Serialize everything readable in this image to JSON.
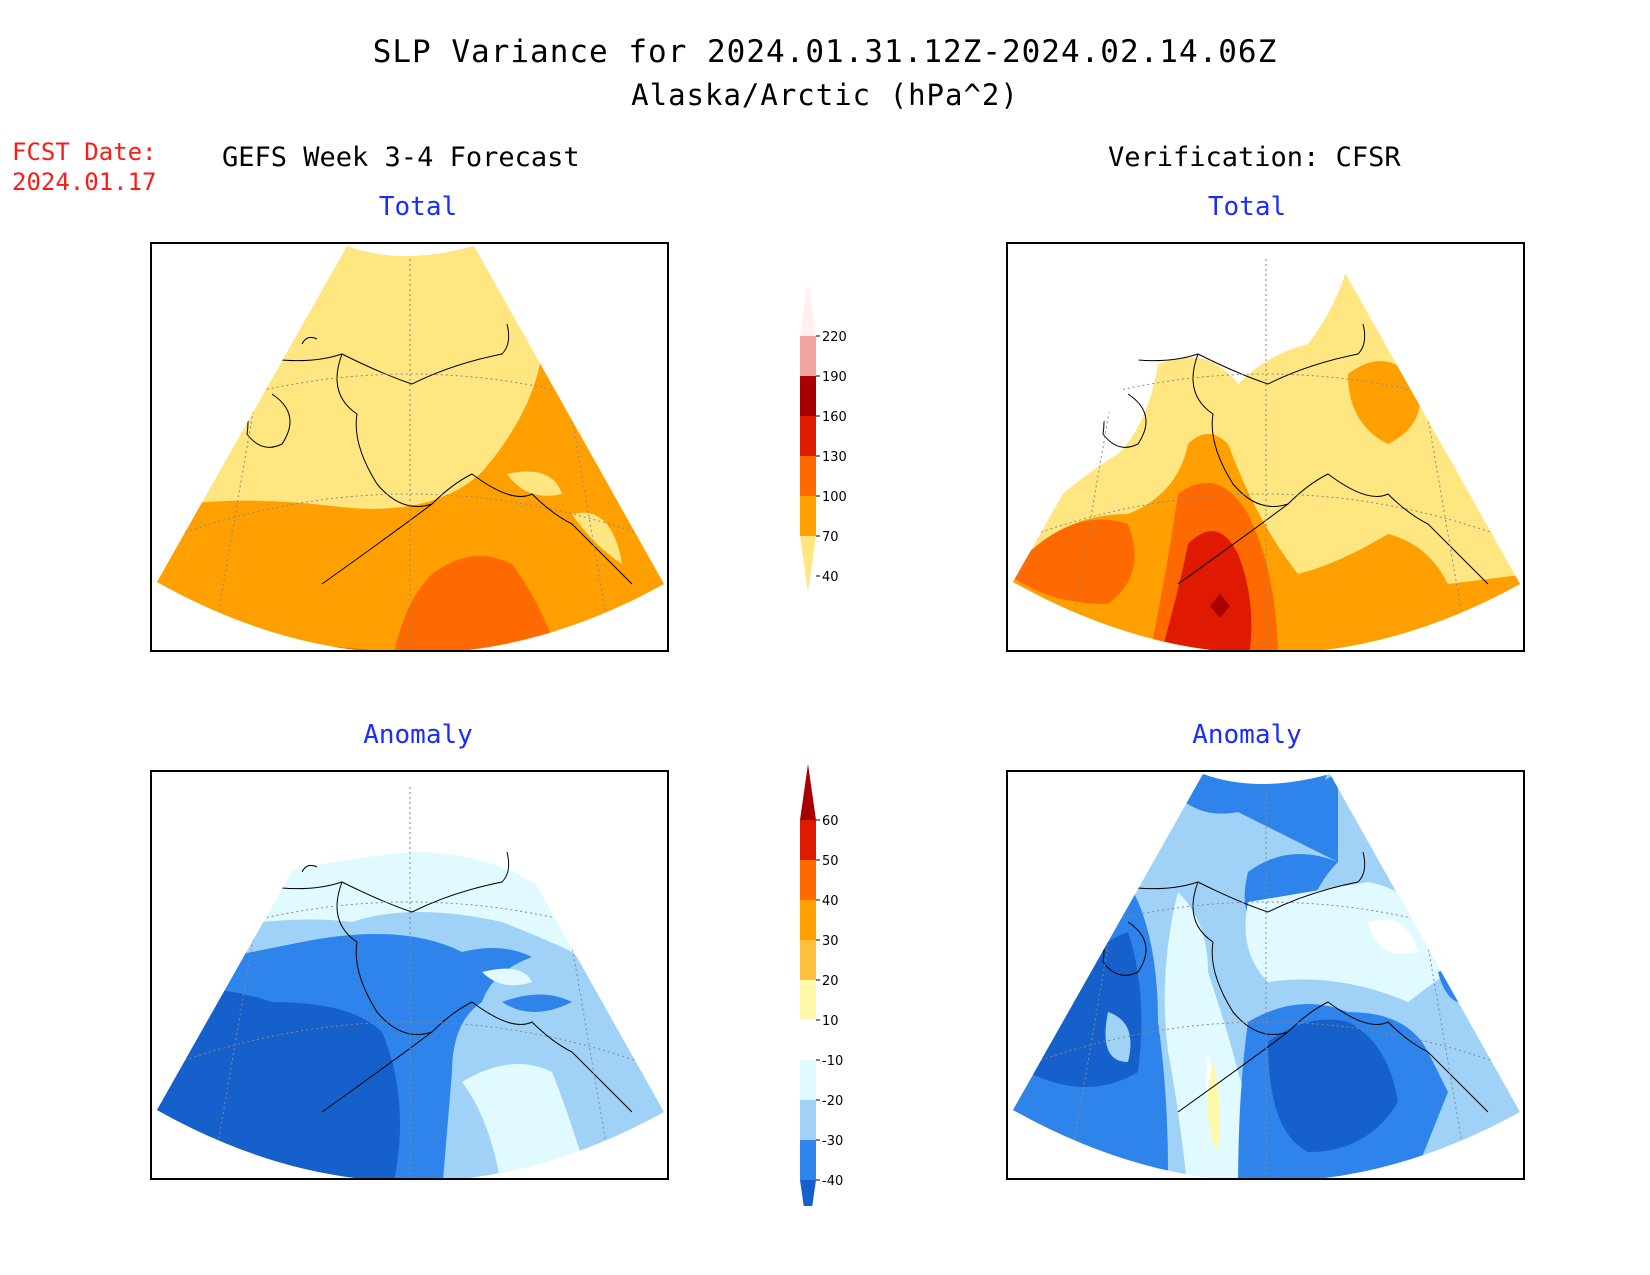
{
  "header": {
    "title": "SLP Variance for 2024.01.31.12Z-2024.02.14.06Z",
    "subtitle": "Alaska/Arctic (hPa^2)",
    "fcst_date_label": "FCST Date:",
    "fcst_date_value": "2024.01.17",
    "left_column": "GEFS Week 3-4 Forecast",
    "right_column": "Verification: CFSR"
  },
  "panels": {
    "top_left_title": "Total",
    "top_right_title": "Total",
    "bottom_left_title": "Anomaly",
    "bottom_right_title": "Anomaly"
  },
  "colorbar_total": {
    "labels": [
      "220",
      "190",
      "160",
      "130",
      "100",
      "70",
      "40"
    ],
    "colors": [
      "#fff0f0",
      "#f4a3a3",
      "#a80000",
      "#e01a00",
      "#ff6a00",
      "#ffa000",
      "#ffe680"
    ]
  },
  "colorbar_anomaly": {
    "labels": [
      "60",
      "50",
      "40",
      "30",
      "20",
      "10",
      "-10",
      "-20",
      "-30",
      "-40"
    ],
    "colors": [
      "#a80000",
      "#e01a00",
      "#ff6a00",
      "#ffa000",
      "#ffc040",
      "#fff8a8",
      "#ffffff",
      "#e0faff",
      "#a0d2f8",
      "#2e84ea",
      "#1660cc"
    ]
  },
  "colors": {
    "title_text": "#000000",
    "fcst_text": "#ff1a1a",
    "panel_title_text": "#1a2cff"
  }
}
